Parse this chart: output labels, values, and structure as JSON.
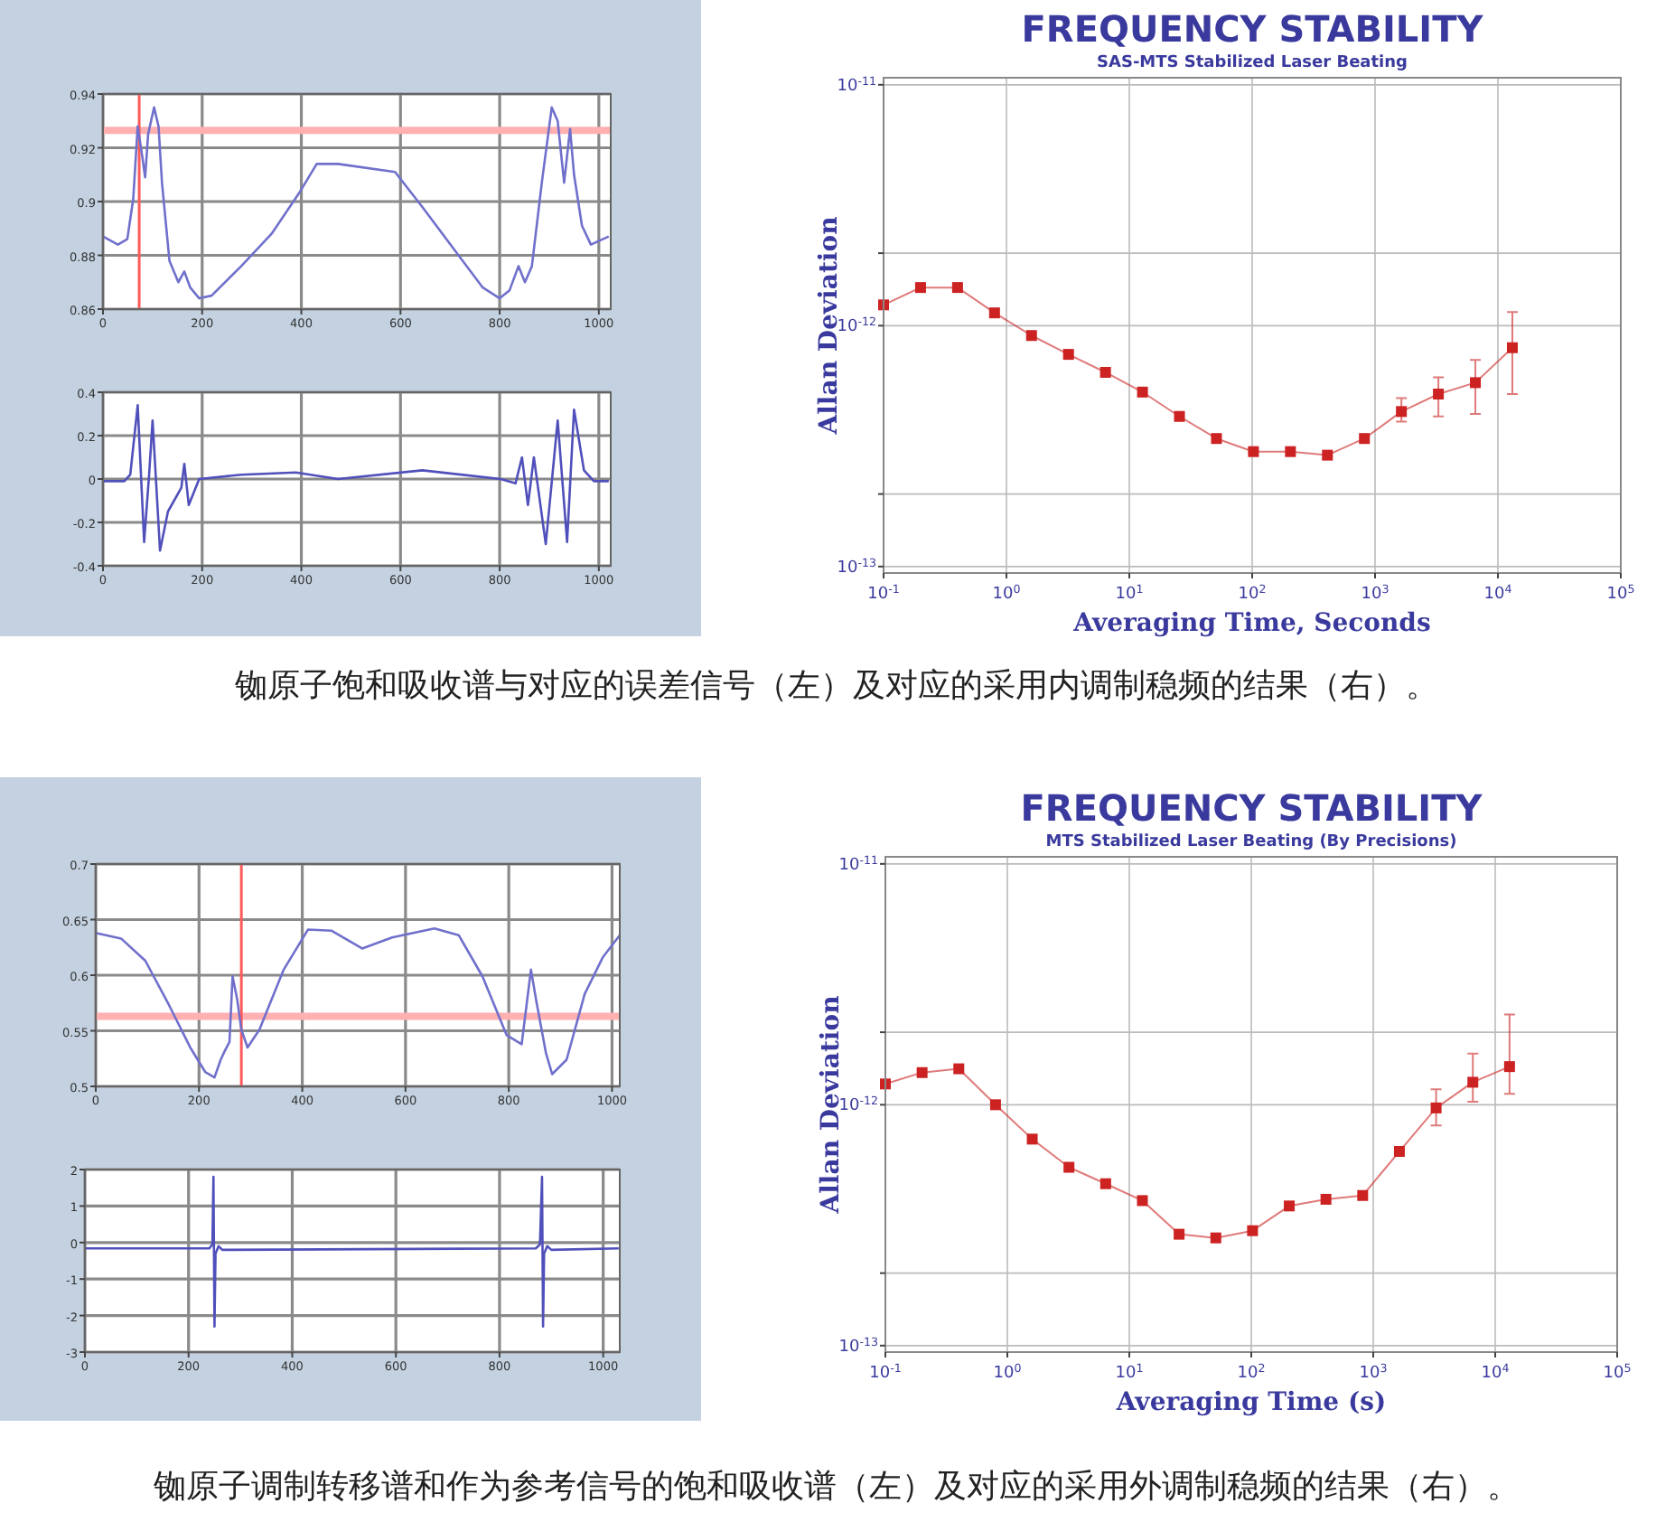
{
  "chart_data": [
    {
      "type": "line",
      "xlim": [
        0,
        1024
      ],
      "ylim": [
        0.86,
        0.94
      ],
      "xticks": [
        0,
        200,
        400,
        600,
        800,
        1000
      ],
      "yticks": [
        0.86,
        0.88,
        0.9,
        0.92,
        0.94
      ],
      "grid": true,
      "series": [
        {
          "color": "#7070cc",
          "x": [
            0,
            30,
            49,
            61,
            70,
            79,
            85,
            91,
            103,
            112,
            119,
            134,
            152,
            164,
            176,
            194,
            219,
            279,
            340,
            395,
            431,
            474,
            589,
            644,
            717,
            766,
            800,
            820,
            838,
            851,
            865,
            885,
            905,
            917,
            930,
            942,
            950,
            966,
            984,
            1020
          ],
          "values": [
            0.887,
            0.884,
            0.886,
            0.901,
            0.928,
            0.917,
            0.909,
            0.925,
            0.935,
            0.928,
            0.907,
            0.878,
            0.87,
            0.874,
            0.868,
            0.864,
            0.865,
            0.876,
            0.888,
            0.903,
            0.914,
            0.914,
            0.911,
            0.898,
            0.88,
            0.868,
            0.864,
            0.867,
            0.876,
            0.87,
            0.876,
            0.907,
            0.935,
            0.93,
            0.907,
            0.927,
            0.91,
            0.891,
            0.884,
            0.887
          ]
        }
      ],
      "ref_lines": [
        {
          "axis": "y",
          "value": 0.9265,
          "color": "#ffb0b0"
        },
        {
          "axis": "x",
          "value": 73,
          "color": "#ff5a5a"
        }
      ]
    },
    {
      "type": "line",
      "xlim": [
        0,
        1024
      ],
      "ylim": [
        -0.4,
        0.4
      ],
      "xticks": [
        0,
        200,
        400,
        600,
        800,
        1000
      ],
      "yticks": [
        -0.4,
        -0.2,
        0,
        0.2,
        0.4
      ],
      "grid": true,
      "series": [
        {
          "color": "#5050bb",
          "x": [
            0,
            43,
            55,
            70,
            83,
            93,
            100,
            115,
            131,
            158,
            164,
            173,
            194,
            279,
            389,
            474,
            644,
            802,
            832,
            845,
            857,
            869,
            893,
            917,
            936,
            950,
            970,
            990,
            1020
          ],
          "values": [
            -0.01,
            -0.01,
            0.02,
            0.34,
            -0.29,
            0.02,
            0.27,
            -0.33,
            -0.15,
            -0.04,
            0.07,
            -0.12,
            0,
            0.02,
            0.03,
            0,
            0.04,
            0,
            -0.02,
            0.1,
            -0.12,
            0.1,
            -0.3,
            0.27,
            -0.29,
            0.32,
            0.04,
            -0.01,
            -0.01
          ]
        }
      ]
    },
    {
      "type": "line",
      "title": "FREQUENCY STABILITY",
      "subtitle": "SAS-MTS Stabilized Laser Beating",
      "xlabel": "Averaging Time, Seconds",
      "ylabel": "Allan Deviation",
      "log": "xy",
      "marker": "square",
      "grid": true,
      "xlim": [
        0.1,
        100000
      ],
      "ylim": [
        9.4e-14,
        1.07e-11
      ],
      "xticks": [
        {
          "value": 0.1,
          "label": "10$^{-1}$"
        },
        {
          "value": 1,
          "label": "10$^{0}$"
        },
        {
          "value": 10,
          "label": "10$^{1}$"
        },
        {
          "value": 100,
          "label": "10$^{2}$"
        },
        {
          "value": 1000,
          "label": "10$^{3}$"
        },
        {
          "value": 10000,
          "label": "10$^{4}$"
        },
        {
          "value": 100000,
          "label": "10$^{5}$"
        }
      ],
      "yticks": [
        {
          "value": 1e-13,
          "label": "10$^{-13}$"
        },
        {
          "value": 2e-13,
          "label": null
        },
        {
          "value": 1e-12,
          "label": "10$^{-12}$"
        },
        {
          "value": 2e-12,
          "label": null
        },
        {
          "value": 1e-11,
          "label": "10$^{-11}$"
        }
      ],
      "series": [
        {
          "color": "#cc2222",
          "x": [
            0.1,
            0.2,
            0.4,
            0.8,
            1.6,
            3.2,
            6.4,
            12.8,
            25.6,
            51.2,
            102.4,
            204.8,
            409.6,
            819.2,
            1638.4,
            3276.8,
            6553.6,
            13107.2
          ],
          "values": [
            1.22e-12,
            1.44e-12,
            1.44e-12,
            1.13e-12,
            9.1e-13,
            7.6e-13,
            6.4e-13,
            5.3e-13,
            4.2e-13,
            3.4e-13,
            3e-13,
            3e-13,
            2.9e-13,
            3.4e-13,
            4.4e-13,
            5.2e-13,
            5.8e-13,
            8.1e-13
          ],
          "errors": [
            null,
            null,
            null,
            null,
            null,
            null,
            null,
            null,
            null,
            null,
            null,
            null,
            null,
            null,
            [
              4e-13,
              5e-13
            ],
            [
              4.2e-13,
              6.1e-13
            ],
            [
              4.3e-13,
              7.2e-13
            ],
            [
              5.2e-13,
              1.14e-12
            ]
          ]
        }
      ],
      "annotations": [
        "铷原子饱和吸收谱与对应的误差信号（左）及对应的采用内调制稳频的结果（右）。"
      ]
    },
    {
      "type": "line",
      "xlim": [
        0,
        1015
      ],
      "ylim": [
        0.5,
        0.7
      ],
      "xticks": [
        0,
        200,
        400,
        600,
        800,
        1000
      ],
      "yticks": [
        0.5,
        0.55,
        0.6,
        0.65,
        0.7
      ],
      "grid": true,
      "series": [
        {
          "color": "#7070cc",
          "x": [
            0,
            49,
            96,
            142,
            183,
            212,
            230,
            242,
            250,
            259,
            265,
            274,
            282,
            294,
            317,
            364,
            411,
            457,
            516,
            574,
            656,
            703,
            749,
            796,
            825,
            843,
            854,
            872,
            884,
            912,
            947,
            982,
            1015
          ],
          "values": [
            0.638,
            0.633,
            0.613,
            0.573,
            0.535,
            0.513,
            0.508,
            0.524,
            0.532,
            0.54,
            0.599,
            0.578,
            0.551,
            0.535,
            0.551,
            0.605,
            0.641,
            0.64,
            0.624,
            0.634,
            0.642,
            0.636,
            0.599,
            0.546,
            0.538,
            0.605,
            0.575,
            0.53,
            0.511,
            0.524,
            0.583,
            0.616,
            0.636
          ]
        }
      ],
      "ref_lines": [
        {
          "axis": "y",
          "value": 0.563,
          "color": "#ffb0b0"
        },
        {
          "axis": "x",
          "value": 282,
          "color": "#ff5a5a"
        }
      ]
    },
    {
      "type": "line",
      "xlim": [
        0,
        1032
      ],
      "ylim": [
        -3,
        2
      ],
      "xticks": [
        0,
        200,
        400,
        600,
        800,
        1000
      ],
      "yticks": [
        -3,
        -2,
        -1,
        0,
        1,
        2
      ],
      "grid": true,
      "series": [
        {
          "color": "#5050bb",
          "x": [
            0,
            240,
            246,
            248,
            250,
            252,
            258,
            265,
            870,
            878,
            882,
            884,
            886,
            892,
            900,
            1030
          ],
          "values": [
            -0.16,
            -0.16,
            -0.05,
            1.8,
            -2.3,
            -0.3,
            -0.1,
            -0.2,
            -0.16,
            -0.05,
            1.8,
            -2.3,
            -0.3,
            -0.1,
            -0.2,
            -0.16
          ]
        }
      ]
    },
    {
      "type": "line",
      "title": "FREQUENCY STABILITY",
      "subtitle": "MTS Stabilized Laser Beating (By Precisions)",
      "xlabel": "Averaging Time (s)",
      "ylabel": "Allan Deviation",
      "log": "xy",
      "marker": "square",
      "grid": true,
      "xlim": [
        0.1,
        100000
      ],
      "ylim": [
        9.4e-14,
        1.07e-11
      ],
      "xticks": [
        {
          "value": 0.1,
          "label": "10$^{-1}$"
        },
        {
          "value": 1,
          "label": "10$^{0}$"
        },
        {
          "value": 10,
          "label": "10$^{1}$"
        },
        {
          "value": 100,
          "label": "10$^{2}$"
        },
        {
          "value": 1000,
          "label": "10$^{3}$"
        },
        {
          "value": 10000,
          "label": "10$^{4}$"
        },
        {
          "value": 100000,
          "label": "10$^{5}$"
        }
      ],
      "yticks": [
        {
          "value": 1e-13,
          "label": "10$^{-13}$"
        },
        {
          "value": 2e-13,
          "label": null
        },
        {
          "value": 1e-12,
          "label": "10$^{-12}$"
        },
        {
          "value": 2e-12,
          "label": null
        },
        {
          "value": 1e-11,
          "label": "10$^{-11}$"
        }
      ],
      "series": [
        {
          "color": "#cc2222",
          "x": [
            0.1,
            0.2,
            0.4,
            0.8,
            1.6,
            3.2,
            6.4,
            12.8,
            25.6,
            51.2,
            102.4,
            204.8,
            409.6,
            819.2,
            1638.4,
            3276.8,
            6553.6,
            13107.2
          ],
          "values": [
            1.22e-12,
            1.36e-12,
            1.41e-12,
            1e-12,
            7.2e-13,
            5.5e-13,
            4.7e-13,
            4e-13,
            2.9e-13,
            2.8e-13,
            3e-13,
            3.8e-13,
            4.05e-13,
            4.2e-13,
            6.4e-13,
            9.7e-13,
            1.24e-12,
            1.44e-12
          ],
          "errors": [
            null,
            null,
            null,
            null,
            null,
            null,
            null,
            null,
            null,
            null,
            null,
            null,
            null,
            null,
            null,
            [
              8.2e-13,
              1.16e-12
            ],
            [
              1.03e-12,
              1.63e-12
            ],
            [
              1.11e-12,
              2.37e-12
            ]
          ]
        }
      ],
      "annotations": [
        "铷原子调制转移谱和作为参考信号的饱和吸收谱（左）及对应的采用外调制稳频的结果（右）。"
      ]
    }
  ]
}
